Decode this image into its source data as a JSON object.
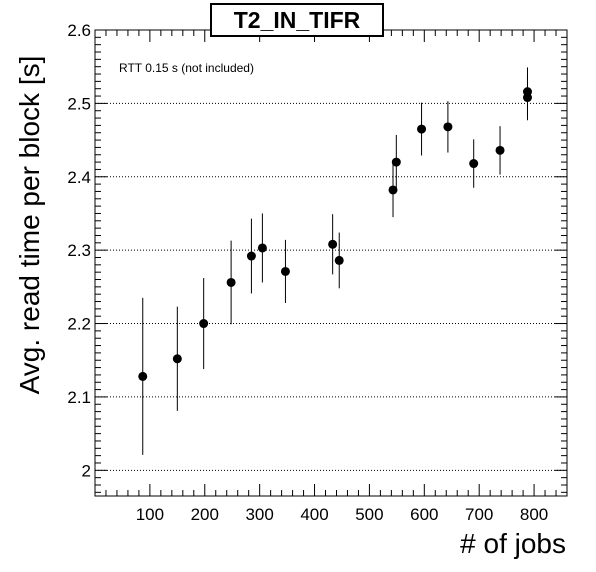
{
  "chart_data": {
    "type": "scatter",
    "title": "T2_IN_TIFR",
    "xlabel": "# of jobs",
    "ylabel": "Avg. read time per block [s]",
    "annotation": "RTT 0.15 s (not included)",
    "xlim": [
      0,
      860
    ],
    "ylim": [
      1.965,
      2.6
    ],
    "x_ticks": [
      100,
      200,
      300,
      400,
      500,
      600,
      700,
      800
    ],
    "y_ticks": [
      2,
      2.1,
      2.2,
      2.3,
      2.4,
      2.5,
      2.6
    ],
    "y_grid": true,
    "series": [
      {
        "marker_color": "#000000",
        "points": [
          {
            "x": 87,
            "y": 2.128,
            "err": 0.107
          },
          {
            "x": 150,
            "y": 2.152,
            "err": 0.071
          },
          {
            "x": 198,
            "y": 2.2,
            "err": 0.062
          },
          {
            "x": 248,
            "y": 2.256,
            "err": 0.057
          },
          {
            "x": 285,
            "y": 2.292,
            "err": 0.051
          },
          {
            "x": 305,
            "y": 2.303,
            "err": 0.047
          },
          {
            "x": 347,
            "y": 2.271,
            "err": 0.043
          },
          {
            "x": 433,
            "y": 2.308,
            "err": 0.041
          },
          {
            "x": 445,
            "y": 2.286,
            "err": 0.038
          },
          {
            "x": 543,
            "y": 2.382,
            "err": 0.037
          },
          {
            "x": 549,
            "y": 2.42,
            "err": 0.037
          },
          {
            "x": 595,
            "y": 2.465,
            "err": 0.036
          },
          {
            "x": 643,
            "y": 2.468,
            "err": 0.035
          },
          {
            "x": 690,
            "y": 2.418,
            "err": 0.033
          },
          {
            "x": 738,
            "y": 2.436,
            "err": 0.033
          },
          {
            "x": 788,
            "y": 2.508,
            "err": 0.031
          },
          {
            "x": 788,
            "y": 2.516,
            "err": 0.033
          }
        ]
      }
    ]
  }
}
